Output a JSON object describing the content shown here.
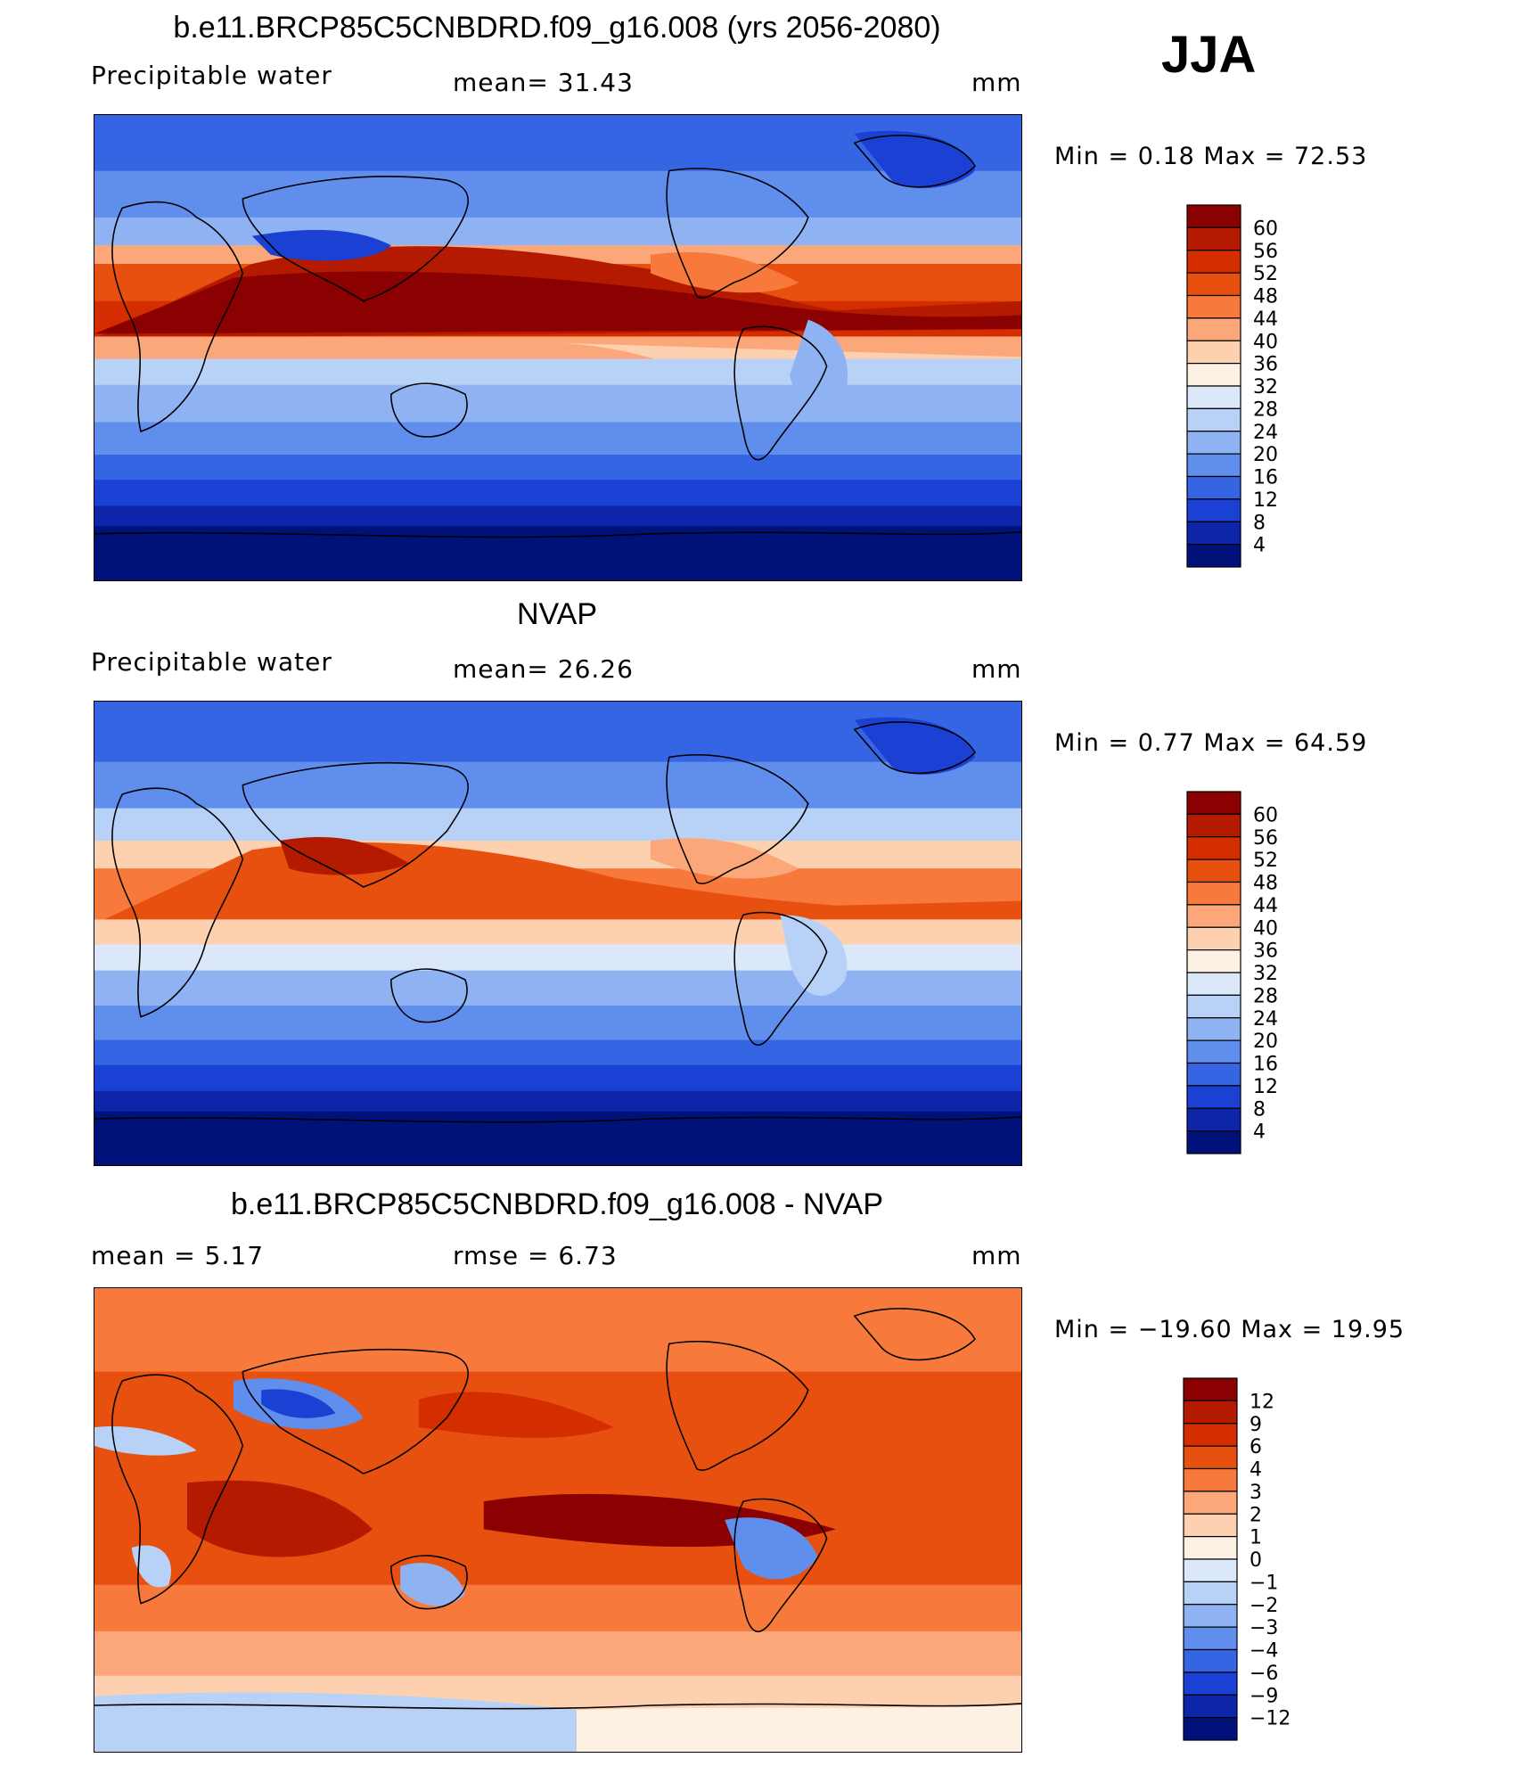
{
  "season": "JJA",
  "panels": [
    {
      "id": "model",
      "title": "b.e11.BRCP85C5CNBDRD.f09_g16.008 (yrs 2056-2080)",
      "left_label": "Precipitable  water",
      "center_label": "mean=   31.43",
      "right_label": "mm",
      "minmax": "Min  =     0.18  Max  =    72.53",
      "colorbar_labels": [
        "60",
        "56",
        "52",
        "48",
        "44",
        "40",
        "36",
        "32",
        "28",
        "24",
        "20",
        "16",
        "12",
        "8",
        "4"
      ],
      "colors": [
        "#8b0000",
        "#b31a00",
        "#d42e00",
        "#e8500f",
        "#f77a3c",
        "#fca77a",
        "#fdd1b0",
        "#fdf1e4",
        "#dbe8f9",
        "#b8d1f7",
        "#8fb3f2",
        "#5f8eec",
        "#3565e3",
        "#1b41d4",
        "#0d25a9",
        "#00127a"
      ]
    },
    {
      "id": "obs",
      "title": "NVAP",
      "left_label": "Precipitable  water",
      "center_label": "mean=   26.26",
      "right_label": "mm",
      "minmax": "Min  =     0.77  Max  =    64.59",
      "colorbar_labels": [
        "60",
        "56",
        "52",
        "48",
        "44",
        "40",
        "36",
        "32",
        "28",
        "24",
        "20",
        "16",
        "12",
        "8",
        "4"
      ],
      "colors": [
        "#8b0000",
        "#b31a00",
        "#d42e00",
        "#e8500f",
        "#f77a3c",
        "#fca77a",
        "#fdd1b0",
        "#fdf1e4",
        "#dbe8f9",
        "#b8d1f7",
        "#8fb3f2",
        "#5f8eec",
        "#3565e3",
        "#1b41d4",
        "#0d25a9",
        "#00127a"
      ]
    },
    {
      "id": "diff",
      "title": "b.e11.BRCP85C5CNBDRD.f09_g16.008 - NVAP",
      "left_label": "mean  =      5.17",
      "center_label": "rmse  =      6.73",
      "right_label": "mm",
      "minmax": "Min  = −19.60  Max  =    19.95",
      "colorbar_labels": [
        "12",
        "9",
        "6",
        "4",
        "3",
        "2",
        "1",
        "0",
        "−1",
        "−2",
        "−3",
        "−4",
        "−6",
        "−9",
        "−12"
      ],
      "colors": [
        "#8b0000",
        "#b31a00",
        "#d42e00",
        "#e8500f",
        "#f77a3c",
        "#fca77a",
        "#fdd1b0",
        "#fdf1e4",
        "#dbe8f9",
        "#b8d1f7",
        "#8fb3f2",
        "#5f8eec",
        "#3565e3",
        "#1b41d4",
        "#0d25a9",
        "#00127a"
      ]
    }
  ]
}
